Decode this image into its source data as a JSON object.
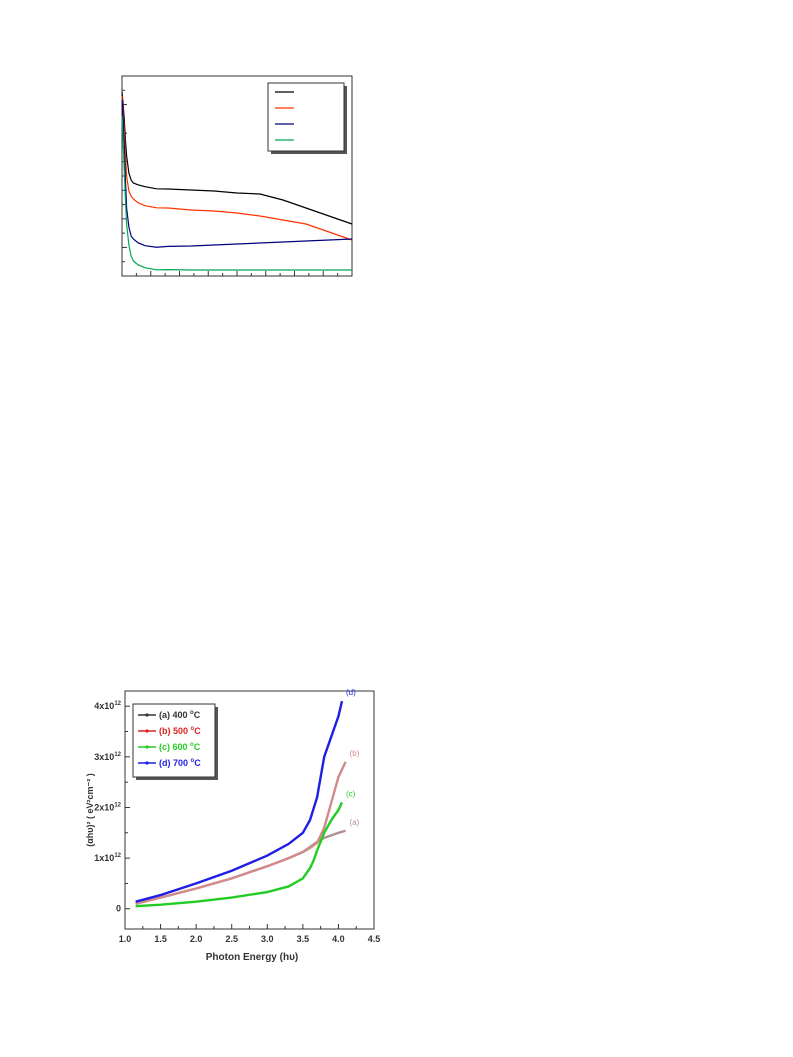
{
  "chart_data": [
    {
      "type": "line",
      "title": "",
      "xlabel": "",
      "ylabel": "",
      "xlim": [
        0,
        100
      ],
      "ylim": [
        0,
        100
      ],
      "grid": false,
      "legend": {
        "position": "top-right",
        "labels_visible": false
      },
      "series": [
        {
          "color": "#000000",
          "x": [
            0,
            0.5,
            1,
            1.5,
            2,
            3,
            4,
            5,
            7,
            10,
            15,
            20,
            30,
            40,
            50,
            60,
            65,
            70,
            80,
            90,
            100
          ],
          "y": [
            92,
            86,
            78,
            68,
            60,
            52,
            48,
            46,
            45,
            44.5,
            44,
            43.5,
            43,
            42.5,
            41.5,
            41,
            39.5,
            38,
            34,
            30,
            26
          ]
        },
        {
          "color": "#ff3300",
          "x": [
            0,
            0.5,
            1,
            1.5,
            2,
            3,
            4,
            5,
            7,
            10,
            15,
            20,
            30,
            40,
            50,
            60,
            70,
            80,
            90,
            100
          ],
          "y": [
            90,
            82,
            72,
            60,
            50,
            43,
            40,
            38,
            36,
            35,
            34.5,
            34,
            33,
            32.5,
            31.5,
            30,
            28,
            26,
            22,
            18
          ]
        },
        {
          "color": "#000080",
          "x": [
            0,
            0.5,
            1,
            1.5,
            2,
            3,
            4,
            5,
            7,
            10,
            15,
            20,
            30,
            40,
            50,
            60,
            70,
            80,
            90,
            100
          ],
          "y": [
            88,
            78,
            64,
            48,
            34,
            25,
            20,
            18,
            16,
            15,
            14.8,
            14.8,
            15,
            15.5,
            16,
            16.5,
            17,
            17.5,
            18,
            18.5
          ]
        },
        {
          "color": "#00a850",
          "x": [
            0,
            0.5,
            1,
            1.5,
            2,
            3,
            4,
            5,
            7,
            10,
            15,
            20,
            30,
            40,
            50,
            60,
            70,
            80,
            90,
            100
          ],
          "y": [
            80,
            68,
            52,
            38,
            26,
            16,
            10,
            7,
            5,
            4,
            3.5,
            3.2,
            3,
            3,
            3,
            3,
            3,
            3,
            3,
            3
          ]
        }
      ]
    },
    {
      "type": "line",
      "title": "",
      "xlabel": "Photon Energy (hυ)",
      "ylabel": "(αhυ)² ( eV²cm⁻² )",
      "xlim": [
        1.0,
        4.5
      ],
      "ylim": [
        -0.4,
        4.3
      ],
      "x_ticks": [
        "1.0",
        "1.5",
        "2.0",
        "2.5",
        "3.0",
        "3.5",
        "4.0",
        "4.5"
      ],
      "y_ticks": [
        {
          "value": 0,
          "mantissa": "0",
          "exponent": ""
        },
        {
          "value": 1,
          "mantissa": "1x10",
          "exponent": "12"
        },
        {
          "value": 2,
          "mantissa": "2x10",
          "exponent": "12"
        },
        {
          "value": 3,
          "mantissa": "3x10",
          "exponent": "12"
        },
        {
          "value": 4,
          "mantissa": "4x10",
          "exponent": "12"
        }
      ],
      "y_unit_scale": 1000000000000.0,
      "grid": false,
      "legend": {
        "position": "top-left",
        "entries": [
          {
            "prefix": "(a) 400 ",
            "sup": "o",
            "suffix": "C",
            "color": "#333333"
          },
          {
            "prefix": "(b) 500 ",
            "sup": "o",
            "suffix": "C",
            "color": "#dd2222"
          },
          {
            "prefix": "(c) 600 ",
            "sup": "o",
            "suffix": "C",
            "color": "#22cc22"
          },
          {
            "prefix": "(d) 700 ",
            "sup": "o",
            "suffix": "C",
            "color": "#1e1ee6"
          }
        ]
      },
      "series": [
        {
          "name": "(a) 400 °C",
          "end_label": "(a)",
          "color": "#b09090",
          "x": [
            1.15,
            1.5,
            2.0,
            2.5,
            3.0,
            3.3,
            3.5,
            3.6,
            3.7,
            3.8,
            3.9,
            4.0,
            4.1
          ],
          "y": [
            0.1,
            0.22,
            0.4,
            0.6,
            0.84,
            1.0,
            1.12,
            1.22,
            1.32,
            1.4,
            1.45,
            1.5,
            1.54
          ]
        },
        {
          "name": "(b) 500 °C",
          "end_label": "(b)",
          "color": "#d28a8a",
          "x": [
            1.15,
            1.5,
            2.0,
            2.5,
            3.0,
            3.3,
            3.5,
            3.6,
            3.7,
            3.8,
            3.9,
            4.0,
            4.1
          ],
          "y": [
            0.1,
            0.22,
            0.4,
            0.6,
            0.84,
            1.0,
            1.12,
            1.2,
            1.3,
            1.6,
            2.1,
            2.6,
            2.9
          ]
        },
        {
          "name": "(c) 600 °C",
          "end_label": "(c)",
          "color": "#22cc22",
          "x": [
            1.15,
            1.5,
            2.0,
            2.5,
            3.0,
            3.3,
            3.5,
            3.6,
            3.65,
            3.7,
            3.8,
            3.9,
            4.0,
            4.05
          ],
          "y": [
            0.05,
            0.08,
            0.14,
            0.22,
            0.33,
            0.44,
            0.6,
            0.8,
            0.95,
            1.15,
            1.5,
            1.75,
            1.95,
            2.1
          ]
        },
        {
          "name": "(d) 700 °C",
          "end_label": "(d)",
          "color": "#1e1ee6",
          "x": [
            1.15,
            1.5,
            2.0,
            2.5,
            3.0,
            3.3,
            3.5,
            3.6,
            3.7,
            3.75,
            3.8,
            3.9,
            4.0,
            4.05
          ],
          "y": [
            0.14,
            0.27,
            0.5,
            0.75,
            1.05,
            1.28,
            1.5,
            1.75,
            2.2,
            2.6,
            3.0,
            3.4,
            3.8,
            4.1
          ]
        }
      ]
    }
  ]
}
